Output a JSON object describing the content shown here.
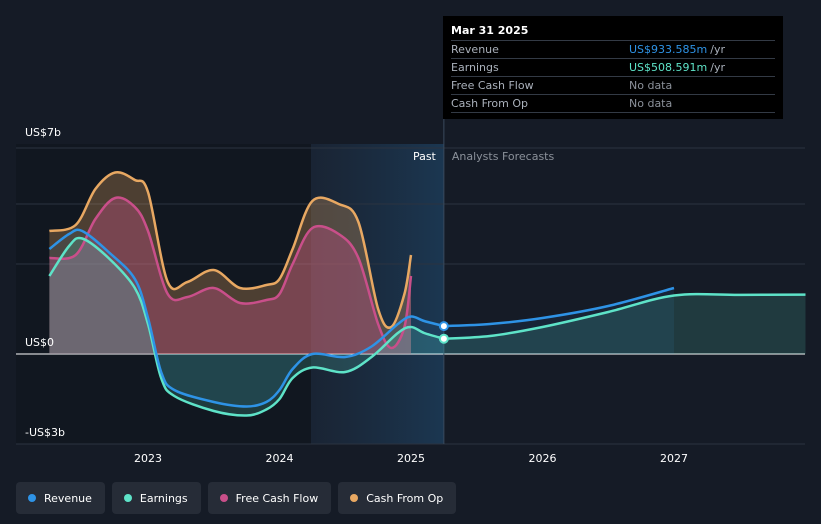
{
  "tooltip": {
    "date": "Mar 31 2025",
    "rows": [
      {
        "label": "Revenue",
        "value": "US$933.585m",
        "unit": "/yr",
        "color": "#2e93e6"
      },
      {
        "label": "Earnings",
        "value": "US$508.591m",
        "unit": "/yr",
        "color": "#5ee3c8"
      },
      {
        "label": "Free Cash Flow",
        "value": "No data",
        "unit": "",
        "color": "#8b919a"
      },
      {
        "label": "Cash From Op",
        "value": "No data",
        "unit": "",
        "color": "#8b919a"
      }
    ]
  },
  "legend": [
    {
      "label": "Revenue",
      "color": "#2e93e6"
    },
    {
      "label": "Earnings",
      "color": "#5ee3c8"
    },
    {
      "label": "Free Cash Flow",
      "color": "#c94f8a"
    },
    {
      "label": "Cash From Op",
      "color": "#e8a862"
    }
  ],
  "chart_data": {
    "type": "line",
    "ylim": [
      -3,
      7
    ],
    "xlim": [
      2022.0,
      2028.0
    ],
    "y_tick_labels": [
      {
        "value": 7,
        "label": "US$7b"
      },
      {
        "value": 0,
        "label": "US$0"
      },
      {
        "value": -3,
        "label": "-US$3b"
      }
    ],
    "x_ticks": [
      {
        "value": 2023,
        "label": "2023"
      },
      {
        "value": 2024,
        "label": "2024"
      },
      {
        "value": 2025,
        "label": "2025"
      },
      {
        "value": 2026,
        "label": "2026"
      },
      {
        "value": 2027,
        "label": "2027"
      }
    ],
    "past_label": "Past",
    "forecast_label": "Analysts Forecasts",
    "past_end": 2025.25,
    "past_start": 2024.25,
    "series": [
      {
        "name": "Revenue",
        "color": "#2e93e6",
        "past": [
          [
            2022.25,
            3.5
          ],
          [
            2022.4,
            4.0
          ],
          [
            2022.5,
            4.1
          ],
          [
            2022.7,
            3.4
          ],
          [
            2022.9,
            2.5
          ],
          [
            2023.0,
            1.2
          ],
          [
            2023.1,
            -0.6
          ],
          [
            2023.2,
            -1.2
          ],
          [
            2023.5,
            -1.6
          ],
          [
            2023.75,
            -1.75
          ],
          [
            2023.9,
            -1.6
          ],
          [
            2024.0,
            -1.2
          ],
          [
            2024.1,
            -0.5
          ],
          [
            2024.25,
            0.0
          ],
          [
            2024.5,
            -0.1
          ],
          [
            2024.7,
            0.25
          ],
          [
            2024.9,
            1.0
          ],
          [
            2025.0,
            1.25
          ],
          [
            2025.1,
            1.1
          ],
          [
            2025.25,
            0.93
          ]
        ],
        "forecast": [
          [
            2025.25,
            0.93
          ],
          [
            2025.6,
            1.0
          ],
          [
            2026.0,
            1.2
          ],
          [
            2026.5,
            1.6
          ],
          [
            2027.0,
            2.2
          ]
        ]
      },
      {
        "name": "Earnings",
        "color": "#5ee3c8",
        "past": [
          [
            2022.25,
            2.6
          ],
          [
            2022.4,
            3.6
          ],
          [
            2022.5,
            3.85
          ],
          [
            2022.7,
            3.2
          ],
          [
            2022.9,
            2.2
          ],
          [
            2023.0,
            1.0
          ],
          [
            2023.1,
            -0.8
          ],
          [
            2023.2,
            -1.4
          ],
          [
            2023.5,
            -1.9
          ],
          [
            2023.75,
            -2.05
          ],
          [
            2023.9,
            -1.85
          ],
          [
            2024.0,
            -1.5
          ],
          [
            2024.1,
            -0.8
          ],
          [
            2024.25,
            -0.45
          ],
          [
            2024.5,
            -0.6
          ],
          [
            2024.7,
            -0.1
          ],
          [
            2024.9,
            0.7
          ],
          [
            2025.0,
            0.9
          ],
          [
            2025.1,
            0.7
          ],
          [
            2025.25,
            0.51
          ]
        ],
        "forecast": [
          [
            2025.25,
            0.51
          ],
          [
            2025.6,
            0.6
          ],
          [
            2026.0,
            0.9
          ],
          [
            2026.5,
            1.4
          ],
          [
            2027.0,
            1.95
          ],
          [
            2027.5,
            1.97
          ],
          [
            2028.0,
            1.98
          ]
        ]
      },
      {
        "name": "Free Cash Flow",
        "color": "#c94f8a",
        "past": [
          [
            2022.25,
            3.2
          ],
          [
            2022.45,
            3.3
          ],
          [
            2022.6,
            4.5
          ],
          [
            2022.75,
            5.2
          ],
          [
            2022.9,
            4.9
          ],
          [
            2023.0,
            4.1
          ],
          [
            2023.15,
            2.0
          ],
          [
            2023.3,
            1.9
          ],
          [
            2023.5,
            2.2
          ],
          [
            2023.7,
            1.7
          ],
          [
            2023.9,
            1.8
          ],
          [
            2024.0,
            2.0
          ],
          [
            2024.1,
            3.0
          ],
          [
            2024.25,
            4.2
          ],
          [
            2024.45,
            4.0
          ],
          [
            2024.6,
            3.2
          ],
          [
            2024.75,
            1.0
          ],
          [
            2024.85,
            0.2
          ],
          [
            2024.95,
            0.9
          ],
          [
            2025.0,
            2.6
          ]
        ]
      },
      {
        "name": "Cash From Op",
        "color": "#e8a862",
        "past": [
          [
            2022.25,
            4.1
          ],
          [
            2022.45,
            4.3
          ],
          [
            2022.6,
            5.5
          ],
          [
            2022.75,
            6.05
          ],
          [
            2022.9,
            5.8
          ],
          [
            2023.0,
            5.4
          ],
          [
            2023.15,
            2.4
          ],
          [
            2023.3,
            2.4
          ],
          [
            2023.5,
            2.8
          ],
          [
            2023.7,
            2.2
          ],
          [
            2023.9,
            2.3
          ],
          [
            2024.0,
            2.5
          ],
          [
            2024.1,
            3.5
          ],
          [
            2024.25,
            5.1
          ],
          [
            2024.45,
            5.0
          ],
          [
            2024.6,
            4.4
          ],
          [
            2024.75,
            1.5
          ],
          [
            2024.85,
            0.9
          ],
          [
            2024.95,
            2.0
          ],
          [
            2025.0,
            3.3
          ]
        ]
      }
    ],
    "highlight_points": [
      {
        "series": "Revenue",
        "x": 2025.25,
        "y": 0.93
      },
      {
        "series": "Earnings",
        "x": 2025.25,
        "y": 0.51
      }
    ]
  }
}
